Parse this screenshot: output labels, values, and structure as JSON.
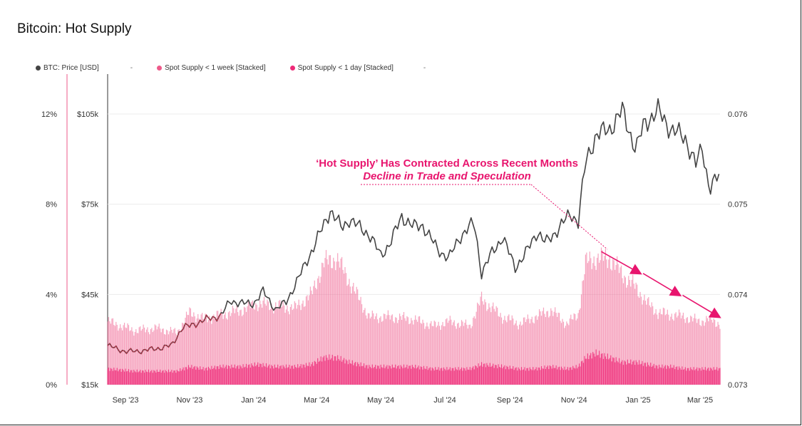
{
  "header": {
    "title": "Bitcoin: Hot Supply"
  },
  "legend": {
    "items": [
      {
        "label": "BTC: Price [USD]",
        "color": "#444444"
      },
      {
        "label": "Spot Supply < 1 week [Stacked]",
        "color": "#ee5a8a"
      },
      {
        "label": "Spot Supply < 1 day [Stacked]",
        "color": "#ee2a78"
      }
    ],
    "dash": "-"
  },
  "chart_data": {
    "type": "line",
    "title": "Bitcoin: Hot Supply",
    "x_ticks": [
      "Sep '23",
      "Nov '23",
      "Jan '24",
      "Mar '24",
      "May '24",
      "Jul '24",
      "Sep '24",
      "Nov '24",
      "Jan '25",
      "Mar '25"
    ],
    "x_range": [
      "2023-08-15",
      "2025-03-20"
    ],
    "y_left_pct": {
      "ticks": [
        "0%",
        "4%",
        "8%",
        "12%"
      ],
      "range": [
        0,
        12
      ]
    },
    "y_left_price": {
      "ticks": [
        "$15k",
        "$45k",
        "$75k",
        "$105k"
      ],
      "range": [
        15000,
        105000
      ]
    },
    "y_right": {
      "ticks": [
        "0.073",
        "0.074",
        "0.075",
        "0.076"
      ],
      "range": [
        0.073,
        0.076
      ]
    },
    "series": [
      {
        "name": "BTC: Price [USD]",
        "axis": "price",
        "color": "#444444",
        "x": [
          "2023-08-15",
          "2023-09-01",
          "2023-09-15",
          "2023-10-01",
          "2023-10-15",
          "2023-10-25",
          "2023-11-01",
          "2023-11-15",
          "2023-12-01",
          "2023-12-10",
          "2023-12-20",
          "2024-01-01",
          "2024-01-10",
          "2024-01-22",
          "2024-02-01",
          "2024-02-15",
          "2024-02-28",
          "2024-03-05",
          "2024-03-14",
          "2024-03-25",
          "2024-04-01",
          "2024-04-12",
          "2024-04-20",
          "2024-05-01",
          "2024-05-10",
          "2024-05-21",
          "2024-06-01",
          "2024-06-10",
          "2024-06-24",
          "2024-07-05",
          "2024-07-15",
          "2024-07-29",
          "2024-08-05",
          "2024-08-15",
          "2024-08-25",
          "2024-09-06",
          "2024-09-15",
          "2024-09-27",
          "2024-10-05",
          "2024-10-15",
          "2024-10-29",
          "2024-11-05",
          "2024-11-12",
          "2024-11-22",
          "2024-12-05",
          "2024-12-17",
          "2024-12-30",
          "2025-01-07",
          "2025-01-20",
          "2025-02-01",
          "2025-02-15",
          "2025-02-25",
          "2025-03-03",
          "2025-03-10",
          "2025-03-20"
        ],
        "y": [
          28000,
          26000,
          26200,
          27000,
          28000,
          34000,
          34500,
          36500,
          38000,
          43000,
          42000,
          42000,
          46000,
          40000,
          42500,
          52000,
          61500,
          66000,
          73000,
          67000,
          70000,
          67000,
          65000,
          58000,
          62000,
          71000,
          67500,
          68000,
          60000,
          57000,
          64000,
          69000,
          52000,
          59000,
          64000,
          54000,
          58000,
          66000,
          62000,
          66000,
          72000,
          69000,
          89000,
          98000,
          100000,
          106000,
          93000,
          102000,
          106000,
          100000,
          97000,
          88000,
          94000,
          80000,
          85000
        ]
      },
      {
        "name": "Spot Supply < 1 week [Stacked]",
        "axis": "pct",
        "color": "#ee5a8a",
        "x": [
          "2023-08-15",
          "2023-09-10",
          "2023-10-01",
          "2023-10-20",
          "2023-11-01",
          "2023-11-15",
          "2023-12-01",
          "2023-12-20",
          "2024-01-05",
          "2024-01-20",
          "2024-02-10",
          "2024-02-25",
          "2024-03-08",
          "2024-03-20",
          "2024-04-01",
          "2024-04-20",
          "2024-05-10",
          "2024-06-01",
          "2024-06-20",
          "2024-07-05",
          "2024-07-25",
          "2024-08-05",
          "2024-08-25",
          "2024-09-10",
          "2024-09-25",
          "2024-10-10",
          "2024-10-25",
          "2024-11-05",
          "2024-11-12",
          "2024-11-22",
          "2024-12-05",
          "2024-12-17",
          "2024-12-30",
          "2025-01-10",
          "2025-01-20",
          "2025-02-01",
          "2025-02-15",
          "2025-02-28",
          "2025-03-10",
          "2025-03-20"
        ],
        "y": [
          2.8,
          2.4,
          2.5,
          2.3,
          3.2,
          2.9,
          3.1,
          3.3,
          3.6,
          3.5,
          3.4,
          4.0,
          5.4,
          5.6,
          4.6,
          3.0,
          3.0,
          2.9,
          2.6,
          2.8,
          2.6,
          3.8,
          3.0,
          2.7,
          3.0,
          3.3,
          2.7,
          3.1,
          5.4,
          5.6,
          5.6,
          4.9,
          4.3,
          3.6,
          3.2,
          3.1,
          3.0,
          2.8,
          2.9,
          2.7
        ]
      },
      {
        "name": "Spot Supply < 1 day [Stacked]",
        "axis": "pct",
        "color": "#ee2a78",
        "x": [
          "2023-08-15",
          "2023-09-10",
          "2023-10-01",
          "2023-10-20",
          "2023-11-01",
          "2023-11-15",
          "2023-12-01",
          "2023-12-20",
          "2024-01-05",
          "2024-01-20",
          "2024-02-10",
          "2024-02-25",
          "2024-03-08",
          "2024-03-20",
          "2024-04-01",
          "2024-04-20",
          "2024-05-10",
          "2024-06-01",
          "2024-06-20",
          "2024-07-05",
          "2024-07-25",
          "2024-08-05",
          "2024-08-25",
          "2024-09-10",
          "2024-09-25",
          "2024-10-10",
          "2024-10-25",
          "2024-11-05",
          "2024-11-12",
          "2024-11-22",
          "2024-12-05",
          "2024-12-17",
          "2024-12-30",
          "2025-01-10",
          "2025-01-20",
          "2025-02-01",
          "2025-02-15",
          "2025-02-28",
          "2025-03-10",
          "2025-03-20"
        ],
        "y": [
          0.7,
          0.6,
          0.6,
          0.6,
          0.8,
          0.7,
          0.8,
          0.8,
          0.9,
          0.8,
          0.8,
          0.9,
          1.2,
          1.2,
          1.0,
          0.8,
          0.8,
          0.8,
          0.7,
          0.7,
          0.7,
          0.9,
          0.8,
          0.7,
          0.7,
          0.8,
          0.7,
          0.8,
          1.2,
          1.4,
          1.2,
          1.0,
          1.0,
          0.9,
          0.8,
          0.8,
          0.7,
          0.7,
          0.7,
          0.7
        ]
      }
    ],
    "annotations": [
      {
        "text": "‘Hot Supply’ Has Contracted Across Recent Months",
        "style": "bold",
        "color": "#e8156e"
      },
      {
        "text": "Decline in Trade and Speculation",
        "style": "bold-italic",
        "color": "#e8156e"
      }
    ],
    "trend_arrow": {
      "x": [
        "2024-11-27",
        "2025-03-20"
      ],
      "y_pct": [
        5.9,
        3.0
      ]
    },
    "grid": "horizontal",
    "legend_position": "top-left"
  }
}
